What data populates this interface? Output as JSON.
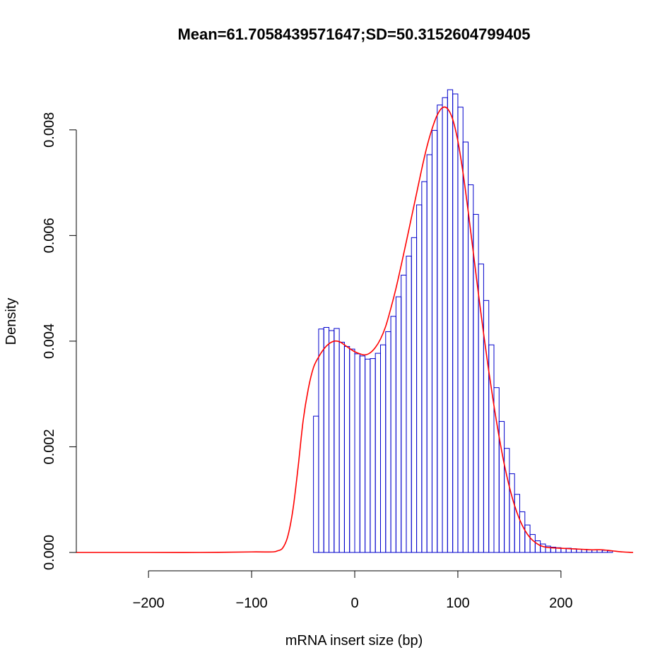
{
  "chart_data": {
    "type": "bar",
    "title": "Mean=61.7058439571647;SD=50.3152604799405",
    "xlabel": "mRNA insert size (bp)",
    "ylabel": "Density",
    "xlim": [
      -270,
      270
    ],
    "ylim": [
      0,
      0.0088
    ],
    "x_ticks": [
      -200,
      -100,
      0,
      100,
      200
    ],
    "x_tick_labels": [
      "−200",
      "−100",
      "0",
      "100",
      "200"
    ],
    "y_ticks": [
      0,
      0.002,
      0.004,
      0.006,
      0.008
    ],
    "y_tick_labels": [
      "0.000",
      "0.002",
      "0.004",
      "0.006",
      "0.008"
    ],
    "grid": false,
    "bin_width": 5,
    "bins_start": [
      -40,
      -35,
      -30,
      -25,
      -20,
      -15,
      -10,
      -5,
      0,
      5,
      10,
      15,
      20,
      25,
      30,
      35,
      40,
      45,
      50,
      55,
      60,
      65,
      70,
      75,
      80,
      85,
      90,
      95,
      100,
      105,
      110,
      115,
      120,
      125,
      130,
      135,
      140,
      145,
      150,
      155,
      160,
      165,
      170,
      175,
      180,
      185,
      190,
      195,
      200,
      205,
      210,
      215,
      220,
      225,
      230,
      235,
      240,
      245
    ],
    "values": [
      0.00258,
      0.00423,
      0.00426,
      0.0042,
      0.00424,
      0.00398,
      0.0039,
      0.00385,
      0.00376,
      0.00372,
      0.00366,
      0.00367,
      0.00377,
      0.00393,
      0.00418,
      0.00447,
      0.00484,
      0.00525,
      0.00561,
      0.00596,
      0.00658,
      0.00702,
      0.00753,
      0.00799,
      0.00847,
      0.00861,
      0.00876,
      0.00868,
      0.00843,
      0.00777,
      0.00696,
      0.0064,
      0.00546,
      0.00477,
      0.00393,
      0.00312,
      0.00248,
      0.00197,
      0.00149,
      0.0011,
      0.00077,
      0.00052,
      0.00034,
      0.00022,
      0.00016,
      0.00012,
      0.0001,
      9e-05,
      8e-05,
      8e-05,
      7e-05,
      6e-05,
      6e-05,
      5e-05,
      5e-05,
      5e-05,
      4e-05,
      3e-05
    ],
    "density_curve": {
      "color": "#ff0000",
      "x": [
        -270,
        -200,
        -150,
        -100,
        -80,
        -75,
        -70,
        -65,
        -60,
        -55,
        -50,
        -45,
        -40,
        -35,
        -30,
        -25,
        -20,
        -15,
        -10,
        -5,
        0,
        5,
        10,
        15,
        20,
        25,
        30,
        35,
        40,
        45,
        50,
        55,
        60,
        65,
        70,
        75,
        80,
        85,
        90,
        95,
        100,
        105,
        110,
        115,
        120,
        125,
        130,
        135,
        140,
        145,
        150,
        155,
        160,
        165,
        170,
        175,
        180,
        185,
        190,
        200,
        210,
        220,
        230,
        240,
        250,
        260,
        270
      ],
      "y": [
        0,
        0,
        0,
        1e-05,
        1e-05,
        3e-05,
        8e-05,
        0.0003,
        0.0008,
        0.0016,
        0.0025,
        0.0031,
        0.0035,
        0.0037,
        0.00385,
        0.00395,
        0.004,
        0.00399,
        0.00393,
        0.00386,
        0.0038,
        0.00376,
        0.00374,
        0.00378,
        0.00388,
        0.00404,
        0.00428,
        0.00462,
        0.005,
        0.00543,
        0.00588,
        0.00634,
        0.0068,
        0.00726,
        0.00768,
        0.00802,
        0.00828,
        0.00842,
        0.0084,
        0.0082,
        0.00779,
        0.00719,
        0.00646,
        0.00568,
        0.00489,
        0.00414,
        0.00343,
        0.00278,
        0.00219,
        0.00167,
        0.00124,
        0.00089,
        0.00062,
        0.00042,
        0.00028,
        0.00019,
        0.00013,
        0.0001,
        9e-05,
        8e-05,
        7e-05,
        6e-05,
        5e-05,
        5e-05,
        3e-05,
        1e-05,
        0
      ]
    },
    "bar_color": "#0000cc"
  }
}
